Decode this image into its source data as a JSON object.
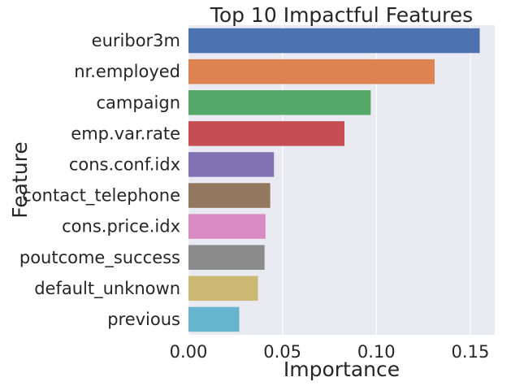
{
  "chart_data": {
    "type": "bar",
    "orientation": "horizontal",
    "title": "Top 10 Impactful Features",
    "xlabel": "Importance",
    "ylabel": "Feature",
    "categories": [
      "euribor3m",
      "nr.employed",
      "campaign",
      "emp.var.rate",
      "cons.conf.idx",
      "contact_telephone",
      "cons.price.idx",
      "poutcome_success",
      "default_unknown",
      "previous"
    ],
    "values": [
      0.155,
      0.131,
      0.097,
      0.083,
      0.0455,
      0.0435,
      0.041,
      0.0405,
      0.037,
      0.027
    ],
    "colors": [
      "#4c72b0",
      "#dd8452",
      "#55a868",
      "#c44e52",
      "#8172b3",
      "#937860",
      "#da8bc3",
      "#8c8c8c",
      "#ccb974",
      "#64b5cd"
    ],
    "xlim": [
      0,
      0.163
    ],
    "xticks": [
      0.0,
      0.05,
      0.1,
      0.15
    ],
    "xtick_labels": [
      "0.00",
      "0.05",
      "0.10",
      "0.15"
    ],
    "grid": true,
    "background": "#eaeaf2"
  }
}
